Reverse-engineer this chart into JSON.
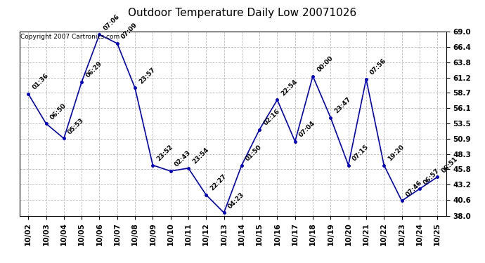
{
  "title": "Outdoor Temperature Daily Low 20071026",
  "copyright": "Copyright 2007 Cartronics.com",
  "dates": [
    "10/02",
    "10/03",
    "10/04",
    "10/05",
    "10/06",
    "10/07",
    "10/08",
    "10/09",
    "10/10",
    "10/11",
    "10/12",
    "10/13",
    "10/14",
    "10/15",
    "10/16",
    "10/17",
    "10/18",
    "10/19",
    "10/20",
    "10/21",
    "10/22",
    "10/23",
    "10/24",
    "10/25"
  ],
  "values": [
    58.5,
    53.5,
    51.0,
    60.5,
    68.5,
    67.0,
    59.5,
    46.5,
    45.5,
    46.0,
    41.5,
    38.5,
    46.5,
    52.5,
    57.5,
    50.5,
    61.5,
    54.5,
    46.5,
    61.0,
    46.5,
    40.5,
    42.5,
    44.5
  ],
  "labels": [
    "01:36",
    "06:50",
    "05:53",
    "06:29",
    "07:06",
    "07:09",
    "23:57",
    "23:52",
    "02:43",
    "23:54",
    "22:27",
    "04:23",
    "01:50",
    "02:16",
    "22:54",
    "07:04",
    "00:00",
    "23:47",
    "07:15",
    "07:56",
    "19:20",
    "07:46",
    "06:57",
    "06:51"
  ],
  "ylim": [
    38.0,
    69.0
  ],
  "yticks": [
    38.0,
    40.6,
    43.2,
    45.8,
    48.3,
    50.9,
    53.5,
    56.1,
    58.7,
    61.2,
    63.8,
    66.4,
    69.0
  ],
  "line_color": "#0000cc",
  "bg_color": "#ffffff",
  "plot_bg_color": "#ffffff",
  "grid_color": "#bbbbbb",
  "title_fontsize": 11,
  "label_fontsize": 6.5,
  "tick_fontsize": 7.5,
  "copyright_fontsize": 6.5
}
